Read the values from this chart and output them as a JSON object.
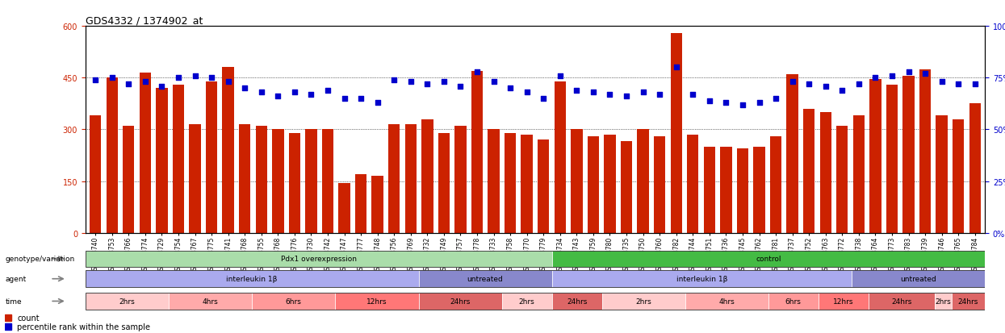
{
  "title": "GDS4332 / 1374902_at",
  "bar_color": "#cc2200",
  "dot_color": "#0000cc",
  "ylim_left": [
    0,
    600
  ],
  "ylim_right": [
    0,
    100
  ],
  "yticks_left": [
    0,
    150,
    300,
    450,
    600
  ],
  "yticks_right": [
    0,
    25,
    50,
    75,
    100
  ],
  "samples": [
    "GSM998740",
    "GSM998753",
    "GSM998766",
    "GSM998774",
    "GSM998729",
    "GSM998754",
    "GSM998767",
    "GSM998775",
    "GSM998741",
    "GSM998768",
    "GSM998755",
    "GSM998768",
    "GSM998776",
    "GSM998730",
    "GSM998742",
    "GSM998747",
    "GSM998777",
    "GSM998748",
    "GSM998756",
    "GSM998769",
    "GSM998732",
    "GSM998749",
    "GSM998757",
    "GSM998778",
    "GSM998733",
    "GSM998758",
    "GSM998770",
    "GSM998779",
    "GSM998734",
    "GSM998743",
    "GSM998759",
    "GSM998780",
    "GSM998735",
    "GSM998750",
    "GSM998760",
    "GSM998782",
    "GSM998744",
    "GSM998751",
    "GSM998736",
    "GSM998745",
    "GSM998762",
    "GSM998781",
    "GSM998737",
    "GSM998752",
    "GSM998763",
    "GSM998772",
    "GSM998738",
    "GSM998764",
    "GSM998773",
    "GSM998783",
    "GSM998739",
    "GSM998746",
    "GSM998765",
    "GSM998784"
  ],
  "bar_heights": [
    340,
    450,
    310,
    465,
    420,
    430,
    315,
    440,
    480,
    315,
    310,
    300,
    290,
    300,
    300,
    145,
    170,
    165,
    315,
    315,
    330,
    290,
    310,
    470,
    300,
    290,
    285,
    270,
    440,
    300,
    280,
    285,
    265,
    300,
    280,
    580,
    285,
    250,
    250,
    245,
    250,
    280,
    460,
    360,
    350,
    310,
    340,
    445,
    430,
    455,
    475,
    340,
    330,
    375
  ],
  "dot_values": [
    74,
    75,
    72,
    73,
    71,
    75,
    76,
    75,
    73,
    70,
    68,
    66,
    68,
    67,
    69,
    65,
    65,
    63,
    74,
    73,
    72,
    73,
    71,
    78,
    73,
    70,
    68,
    65,
    76,
    69,
    68,
    67,
    66,
    68,
    67,
    80,
    67,
    64,
    63,
    62,
    63,
    65,
    73,
    72,
    71,
    69,
    72,
    75,
    76,
    78,
    77,
    73,
    72,
    72
  ],
  "genotype_spans": [
    {
      "label": "Pdx1 overexpression",
      "start": 0,
      "end": 28,
      "color": "#aaddaa"
    },
    {
      "label": "control",
      "start": 28,
      "end": 54,
      "color": "#44bb44"
    }
  ],
  "agent_spans": [
    {
      "label": "interleukin 1β",
      "start": 0,
      "end": 20,
      "color": "#aaaaee"
    },
    {
      "label": "untreated",
      "start": 20,
      "end": 28,
      "color": "#8888cc"
    },
    {
      "label": "interleukin 1β",
      "start": 28,
      "end": 46,
      "color": "#aaaaee"
    },
    {
      "label": "untreated",
      "start": 46,
      "end": 54,
      "color": "#8888cc"
    }
  ],
  "time_spans": [
    {
      "label": "2hrs",
      "start": 0,
      "end": 5,
      "color": "#ffcccc"
    },
    {
      "label": "4hrs",
      "start": 5,
      "end": 10,
      "color": "#ffaaaa"
    },
    {
      "label": "6hrs",
      "start": 10,
      "end": 15,
      "color": "#ff9999"
    },
    {
      "label": "12hrs",
      "start": 15,
      "end": 20,
      "color": "#ff7777"
    },
    {
      "label": "24hrs",
      "start": 20,
      "end": 25,
      "color": "#dd6666"
    },
    {
      "label": "2hrs",
      "start": 25,
      "end": 28,
      "color": "#ffcccc"
    },
    {
      "label": "24hrs",
      "start": 28,
      "end": 31,
      "color": "#dd6666"
    },
    {
      "label": "2hrs",
      "start": 31,
      "end": 36,
      "color": "#ffcccc"
    },
    {
      "label": "4hrs",
      "start": 36,
      "end": 41,
      "color": "#ffaaaa"
    },
    {
      "label": "6hrs",
      "start": 41,
      "end": 44,
      "color": "#ff9999"
    },
    {
      "label": "12hrs",
      "start": 44,
      "end": 47,
      "color": "#ff7777"
    },
    {
      "label": "24hrs",
      "start": 47,
      "end": 51,
      "color": "#dd6666"
    },
    {
      "label": "2hrs",
      "start": 51,
      "end": 52,
      "color": "#ffcccc"
    },
    {
      "label": "24hrs",
      "start": 52,
      "end": 54,
      "color": "#dd6666"
    }
  ],
  "row_labels": [
    "genotype/variation",
    "agent",
    "time"
  ],
  "legend_count_label": "count",
  "legend_pct_label": "percentile rank within the sample"
}
